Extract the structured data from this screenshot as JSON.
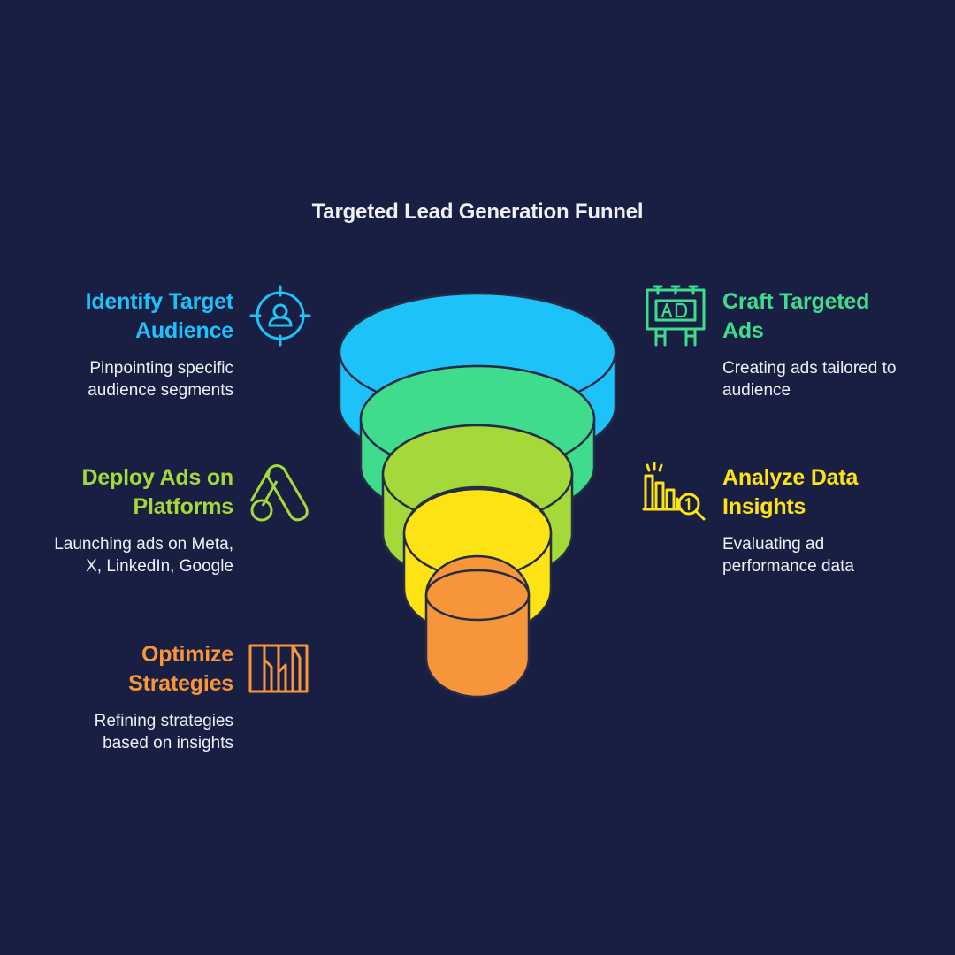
{
  "title": "Targeted Lead Generation Funnel",
  "colors": {
    "background": "#181f42",
    "blue": "#1ec2fb",
    "green": "#40dc8e",
    "lime": "#a5d93a",
    "yellow": "#fde314",
    "orange": "#f7953a",
    "outline": "#252c45"
  },
  "steps": [
    {
      "title_line1": "Identify Target",
      "title_line2": "Audience",
      "desc_line1": "Pinpointing specific",
      "desc_line2": "audience segments",
      "icon": "target-user-icon",
      "color": "#1ec2fb"
    },
    {
      "title_line1": "Craft Targeted",
      "title_line2": "Ads",
      "desc_line1": "Creating ads tailored to",
      "desc_line2": "audience",
      "icon": "ad-billboard-icon",
      "color": "#40dc8e"
    },
    {
      "title_line1": "Deploy Ads on",
      "title_line2": "Platforms",
      "desc_line1": "Launching ads on Meta,",
      "desc_line2": "X, LinkedIn, Google",
      "icon": "google-ads-icon",
      "color": "#a5d93a"
    },
    {
      "title_line1": "Analyze Data",
      "title_line2": "Insights",
      "desc_line1": "Evaluating ad",
      "desc_line2": "performance data",
      "icon": "chart-magnifier-icon",
      "color": "#fde314"
    },
    {
      "title_line1": "Optimize",
      "title_line2": "Strategies",
      "desc_line1": "Refining strategies",
      "desc_line2": "based on insights",
      "icon": "strategy-columns-icon",
      "color": "#f7953a"
    }
  ]
}
